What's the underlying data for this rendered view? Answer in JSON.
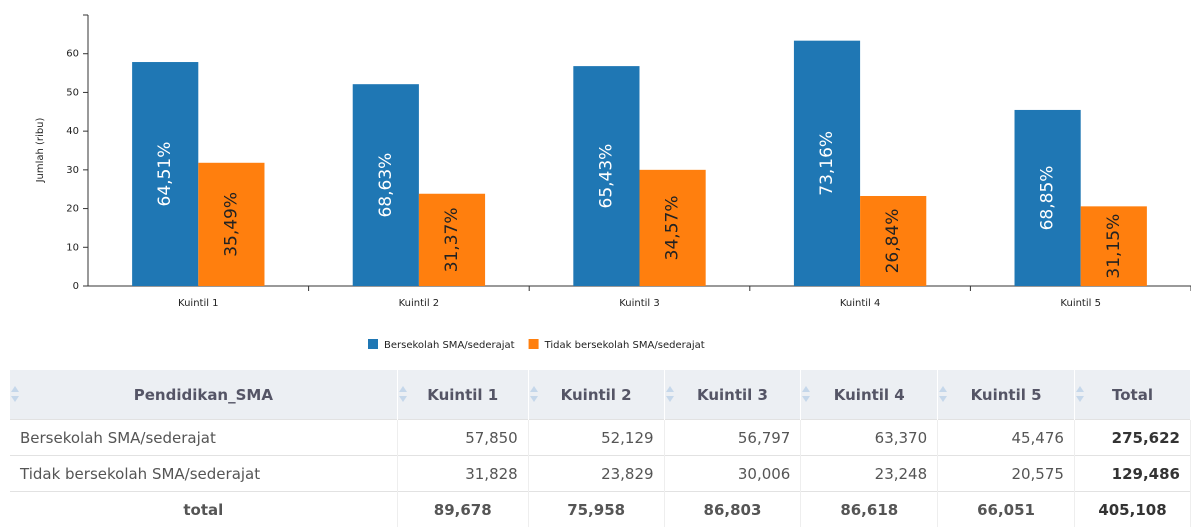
{
  "chart_data": {
    "type": "bar",
    "y_label": "Jumlah (ribu)",
    "categories": [
      "Kuintil 1",
      "Kuintil 2",
      "Kuintil 3",
      "Kuintil 4",
      "Kuintil 5"
    ],
    "series": [
      {
        "name": "Bersekolah SMA/sederajat",
        "color": "#1f77b4",
        "values": [
          57.85,
          52.129,
          56.797,
          63.37,
          45.476
        ],
        "share_labels": [
          "64,51%",
          "68,63%",
          "65,43%",
          "73,16%",
          "68,85%"
        ]
      },
      {
        "name": "Tidak bersekolah SMA/sederajat",
        "color": "#ff7f0e",
        "values": [
          31.828,
          23.829,
          30.006,
          23.248,
          20.575
        ],
        "share_labels": [
          "35,49%",
          "31,37%",
          "34,57%",
          "26,84%",
          "31,15%"
        ]
      }
    ],
    "ylim": [
      0,
      70
    ],
    "yticks": [
      0,
      10,
      20,
      30,
      40,
      50,
      60
    ]
  },
  "table": {
    "header": [
      "Pendidikan_SMA",
      "Kuintil 1",
      "Kuintil 2",
      "Kuintil 3",
      "Kuintil 4",
      "Kuintil 5",
      "Total"
    ],
    "rows": [
      [
        "Bersekolah SMA/sederajat",
        "57,850",
        "52,129",
        "56,797",
        "63,370",
        "45,476",
        "275,622"
      ],
      [
        "Tidak bersekolah SMA/sederajat",
        "31,828",
        "23,829",
        "30,006",
        "23,248",
        "20,575",
        "129,486"
      ],
      [
        "total",
        "89,678",
        "75,958",
        "86,803",
        "86,618",
        "66,051",
        "405,108"
      ]
    ]
  }
}
